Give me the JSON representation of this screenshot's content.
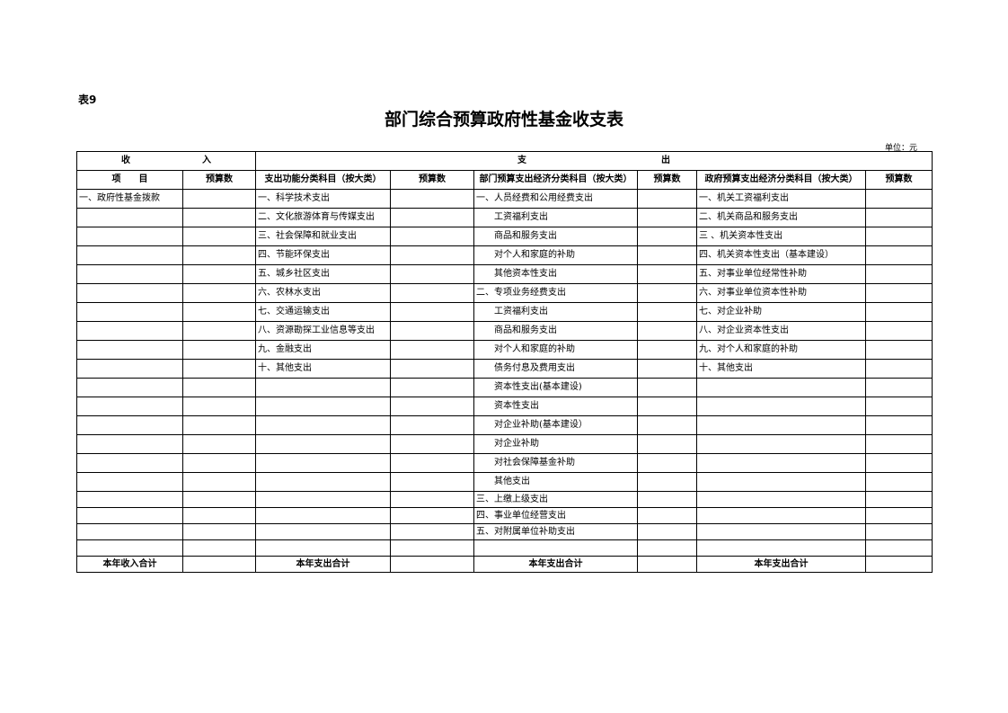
{
  "table_no": "表9",
  "title": "部门综合预算政府性基金收支表",
  "unit": "单位：元",
  "headers": {
    "income": "收　　　　　　　　入",
    "expense": "支　　　　　　　　　　　　　　　出",
    "item": "项　　目",
    "budget": "预算数",
    "func_col": "支出功能分类科目（按大类）",
    "dept_col": "部门预算支出经济分类科目（按大类）",
    "gov_col": "政府预算支出经济分类科目（按大类）"
  },
  "rows": [
    [
      "一、政府性基金拨款",
      "一、科学技术支出",
      "一、人员经费和公用经费支出",
      "一、机关工资福利支出"
    ],
    [
      "",
      "二、文化旅游体育与传媒支出",
      "工资福利支出",
      "二、机关商品和服务支出"
    ],
    [
      "",
      "三、社会保障和就业支出",
      "商品和服务支出",
      "三 、机关资本性支出"
    ],
    [
      "",
      "四、节能环保支出",
      "对个人和家庭的补助",
      "四、机关资本性支出（基本建设）"
    ],
    [
      "",
      "五、城乡社区支出",
      "其他资本性支出",
      "五、对事业单位经常性补助"
    ],
    [
      "",
      "六、农林水支出",
      "二、专项业务经费支出",
      "六、对事业单位资本性补助"
    ],
    [
      "",
      "七、交通运输支出",
      "工资福利支出",
      "七、对企业补助"
    ],
    [
      "",
      "八、资源勘探工业信息等支出",
      "商品和服务支出",
      "八、对企业资本性支出"
    ],
    [
      "",
      "九、金融支出",
      "对个人和家庭的补助",
      "九、对个人和家庭的补助"
    ],
    [
      "",
      "十、其他支出",
      "债务付息及费用支出",
      "十、其他支出"
    ],
    [
      "",
      "",
      "资本性支出(基本建设)",
      ""
    ],
    [
      "",
      "",
      "资本性支出",
      ""
    ],
    [
      "",
      "",
      "对企业补助(基本建设）",
      ""
    ],
    [
      "",
      "",
      "对企业补助",
      ""
    ],
    [
      "",
      "",
      "对社会保障基金补助",
      ""
    ],
    [
      "",
      "",
      "其他支出",
      ""
    ],
    [
      "",
      "",
      "三、上缴上级支出",
      ""
    ],
    [
      "",
      "",
      "四、事业单位经营支出",
      ""
    ],
    [
      "",
      "",
      "五、对附属单位补助支出",
      ""
    ],
    [
      "",
      "",
      "",
      ""
    ]
  ],
  "totals": {
    "income": "本年收入合计",
    "expense_func": "本年支出合计",
    "expense_dept": "本年支出合计",
    "expense_gov": "本年支出合计"
  }
}
